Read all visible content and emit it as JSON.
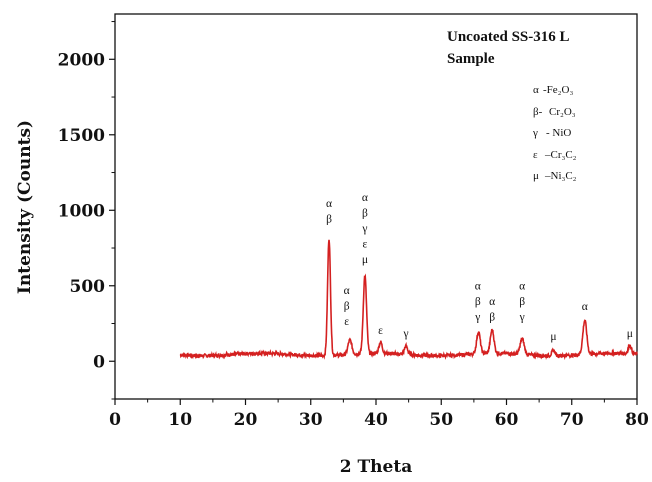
{
  "chart_data": {
    "type": "line",
    "title_lines": [
      "Uncoated SS-316 L",
      "Sample"
    ],
    "xlabel": "2 Theta",
    "ylabel": "Intensity (Counts)",
    "xlim": [
      0,
      80
    ],
    "ylim": [
      -250,
      2300
    ],
    "x_ticks": [
      0,
      10,
      20,
      30,
      40,
      50,
      60,
      70,
      80
    ],
    "y_ticks": [
      0,
      500,
      1000,
      1500,
      2000
    ],
    "grid": false,
    "line_color": "#d42020",
    "baseline": 45,
    "x_range": [
      10,
      80
    ],
    "peaks": [
      {
        "x": 32.8,
        "y": 820,
        "w": 0.22
      },
      {
        "x": 36.0,
        "y": 140,
        "w": 0.3
      },
      {
        "x": 38.3,
        "y": 560,
        "w": 0.25
      },
      {
        "x": 40.7,
        "y": 120,
        "w": 0.25
      },
      {
        "x": 44.6,
        "y": 100,
        "w": 0.25
      },
      {
        "x": 55.7,
        "y": 190,
        "w": 0.28
      },
      {
        "x": 57.8,
        "y": 200,
        "w": 0.28
      },
      {
        "x": 62.4,
        "y": 150,
        "w": 0.3
      },
      {
        "x": 67.2,
        "y": 80,
        "w": 0.25
      },
      {
        "x": 72.0,
        "y": 270,
        "w": 0.3
      },
      {
        "x": 78.9,
        "y": 100,
        "w": 0.25
      }
    ],
    "peak_labels": [
      {
        "x": 32.8,
        "y": 920,
        "lines": [
          "α",
          "β"
        ]
      },
      {
        "x": 35.5,
        "y": 240,
        "lines": [
          "α",
          "β",
          "ε"
        ]
      },
      {
        "x": 38.3,
        "y": 650,
        "lines": [
          "α",
          "β",
          "γ",
          "ε",
          "μ"
        ]
      },
      {
        "x": 40.7,
        "y": 180,
        "lines": [
          "ε"
        ]
      },
      {
        "x": 44.6,
        "y": 160,
        "lines": [
          "γ"
        ]
      },
      {
        "x": 55.6,
        "y": 270,
        "lines": [
          "α",
          "β",
          "γ"
        ]
      },
      {
        "x": 57.8,
        "y": 270,
        "lines": [
          "α",
          "β"
        ]
      },
      {
        "x": 62.4,
        "y": 270,
        "lines": [
          "α",
          "β",
          "γ"
        ]
      },
      {
        "x": 67.2,
        "y": 140,
        "lines": [
          "μ"
        ]
      },
      {
        "x": 72.0,
        "y": 340,
        "lines": [
          "α"
        ]
      },
      {
        "x": 78.9,
        "y": 160,
        "lines": [
          "μ"
        ]
      }
    ],
    "legend": [
      {
        "symbol": "α",
        "text": "-Fe₂O₃"
      },
      {
        "symbol": "β-",
        "text": "Cr₂O₃"
      },
      {
        "symbol": "γ",
        "text": "- NiO"
      },
      {
        "symbol": "ε",
        "text": "–Cr₃C₂"
      },
      {
        "symbol": "μ",
        "text": "–Ni₃C₂"
      }
    ]
  }
}
